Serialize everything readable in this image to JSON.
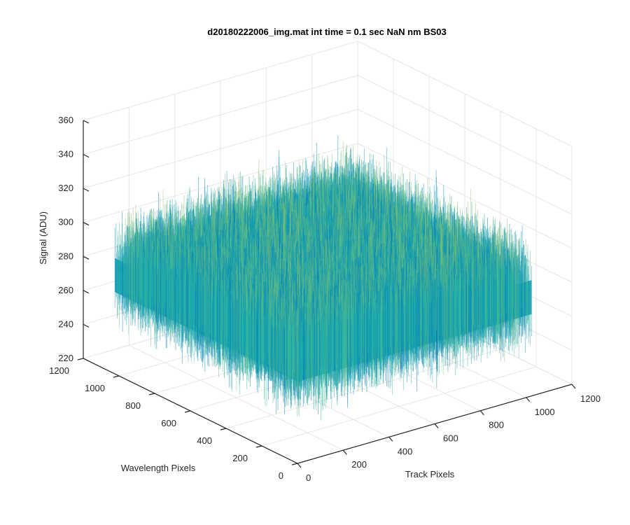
{
  "chart_data": {
    "type": "surface",
    "title": "d20180222006_img.mat int time = 0.1 sec  NaN nm BS03",
    "xlabel": "Track Pixels",
    "ylabel": "Wavelength Pixels",
    "zlabel": "Signal (ADU)",
    "xlim": [
      0,
      1200
    ],
    "ylim": [
      0,
      1200
    ],
    "zlim": [
      220,
      360
    ],
    "x_ticks": [
      "0",
      "200",
      "400",
      "600",
      "800",
      "1000",
      "1200"
    ],
    "y_ticks": [
      "0",
      "200",
      "400",
      "600",
      "800",
      "1000",
      "1200"
    ],
    "z_ticks": [
      "220",
      "240",
      "260",
      "280",
      "300",
      "320",
      "340",
      "360"
    ],
    "surface_extent": {
      "x": [
        1,
        1024
      ],
      "y": [
        1,
        1024
      ]
    },
    "signal_mean": 282,
    "signal_range": [
      240,
      345
    ],
    "grid": true,
    "colormap": "parula",
    "colors": {
      "low": "#0072BD",
      "mid": "#17B8B0",
      "high": "#F0C430",
      "axis": "#262626",
      "grid": "#e6e6e6"
    }
  }
}
